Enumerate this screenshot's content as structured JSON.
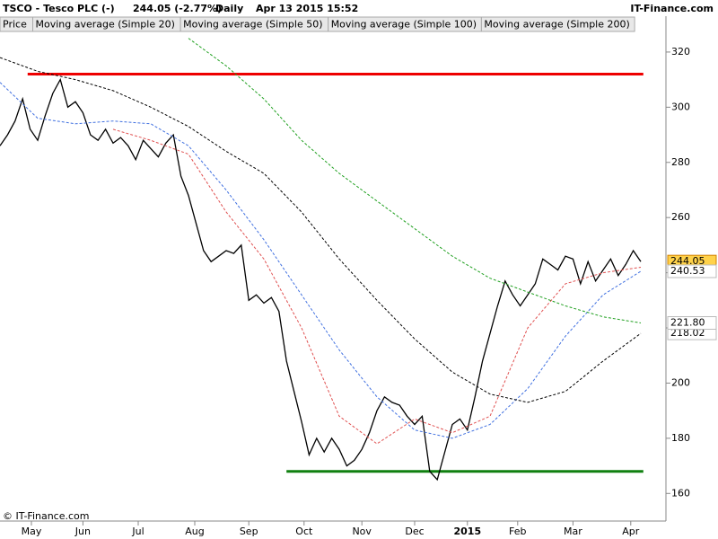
{
  "header": {
    "symbol": "TSCO - Tesco PLC (-)",
    "quote": "244.05 (-2.77%)",
    "period": "Daily",
    "timestamp": "Apr 13 2015 15:52",
    "brand": "IT-Finance.com"
  },
  "footer": "© IT-Finance.com",
  "chart_data": {
    "type": "line",
    "xlim": [
      0,
      265
    ],
    "ylim": [
      150,
      333
    ],
    "yticks": [
      160,
      180,
      200,
      220,
      240,
      260,
      280,
      300,
      320
    ],
    "xticks": [
      {
        "value": 12.5,
        "label": "May"
      },
      {
        "value": 33,
        "label": "Jun"
      },
      {
        "value": 55,
        "label": "Jul"
      },
      {
        "value": 77.5,
        "label": "Aug"
      },
      {
        "value": 99,
        "label": "Sep"
      },
      {
        "value": 121,
        "label": "Oct"
      },
      {
        "value": 144,
        "label": "Nov"
      },
      {
        "value": 165,
        "label": "Dec"
      },
      {
        "value": 186,
        "label": "2015"
      },
      {
        "value": 206,
        "label": "Feb"
      },
      {
        "value": 228,
        "label": "Mar"
      },
      {
        "value": 251,
        "label": "Apr"
      }
    ],
    "series": [
      {
        "name": "Price",
        "color": "#000000",
        "last_label": "244.05",
        "x": [
          0,
          3,
          6,
          9,
          12,
          15,
          18,
          21,
          24,
          27,
          30,
          33,
          36,
          39,
          42,
          45,
          48,
          51,
          54,
          57,
          60,
          63,
          66,
          69,
          72,
          75,
          78,
          81,
          84,
          87,
          90,
          93,
          96,
          99,
          102,
          105,
          108,
          111,
          114,
          117,
          120,
          123,
          126,
          129,
          132,
          135,
          138,
          141,
          144,
          147,
          150,
          153,
          156,
          159,
          162,
          165,
          168,
          171,
          174,
          177,
          180,
          183,
          186,
          189,
          192,
          195,
          198,
          201,
          204,
          207,
          210,
          213,
          216,
          219,
          222,
          225,
          228,
          231,
          234,
          237,
          240,
          243,
          246,
          249,
          252,
          255
        ],
        "values": [
          286,
          290,
          295,
          303,
          292,
          288,
          297,
          305,
          310,
          300,
          302,
          298,
          290,
          288,
          292,
          287,
          289,
          286,
          281,
          288,
          285,
          282,
          287,
          290,
          275,
          268,
          258,
          248,
          244,
          246,
          248,
          247,
          250,
          230,
          232,
          229,
          231,
          226,
          208,
          197,
          186,
          174,
          180,
          175,
          180,
          176,
          170,
          172,
          176,
          182,
          190,
          195,
          193,
          192,
          188,
          185,
          188,
          168,
          165,
          175,
          185,
          187,
          183,
          195,
          208,
          218,
          228,
          237,
          232,
          228,
          232,
          236,
          245,
          243,
          241,
          246,
          245,
          236,
          244,
          237,
          241,
          245,
          239,
          243,
          248,
          244.05
        ]
      },
      {
        "name": "Moving average (Simple 20)",
        "color": "#e05050",
        "x": [
          0,
          15,
          30,
          45,
          60,
          75,
          90,
          105,
          120,
          135,
          150,
          165,
          180,
          195,
          210,
          225,
          240,
          255
        ],
        "values": [
          null,
          null,
          null,
          292,
          288,
          283,
          262,
          245,
          220,
          188,
          178,
          187,
          182,
          188,
          220,
          236,
          240,
          242
        ]
      },
      {
        "name": "Moving average (Simple 50)",
        "color": "#4070e0",
        "last_label": "240.53",
        "x": [
          0,
          15,
          30,
          45,
          60,
          75,
          90,
          105,
          120,
          135,
          150,
          165,
          180,
          195,
          210,
          225,
          240,
          255
        ],
        "values": [
          309,
          296,
          294,
          295,
          294,
          286,
          270,
          252,
          232,
          212,
          195,
          183,
          180,
          185,
          198,
          217,
          232,
          240.53
        ]
      },
      {
        "name": "Moving average (Simple 100)",
        "color": "#000000",
        "last_label": "218.02",
        "x": [
          0,
          15,
          30,
          45,
          60,
          75,
          90,
          105,
          120,
          135,
          150,
          165,
          180,
          195,
          210,
          225,
          240,
          255
        ],
        "values": [
          318,
          313,
          310,
          306,
          300,
          293,
          284,
          276,
          262,
          245,
          230,
          216,
          204,
          196,
          193,
          197,
          208,
          218.02
        ]
      },
      {
        "name": "Moving average (Simple 200)",
        "color": "#20a020",
        "last_label": "221.80",
        "x": [
          0,
          15,
          30,
          45,
          60,
          75,
          90,
          105,
          120,
          135,
          150,
          165,
          180,
          195,
          210,
          225,
          240,
          255
        ],
        "values": [
          null,
          null,
          null,
          null,
          null,
          325,
          315,
          303,
          288,
          276,
          266,
          256,
          246,
          238,
          233,
          228,
          224,
          221.8
        ]
      }
    ],
    "levels": [
      {
        "value": 312,
        "color": "#ee0000",
        "x_start": 11,
        "x_end": 256
      },
      {
        "value": 168,
        "color": "#108010",
        "x_start": 114,
        "x_end": 256
      }
    ]
  }
}
